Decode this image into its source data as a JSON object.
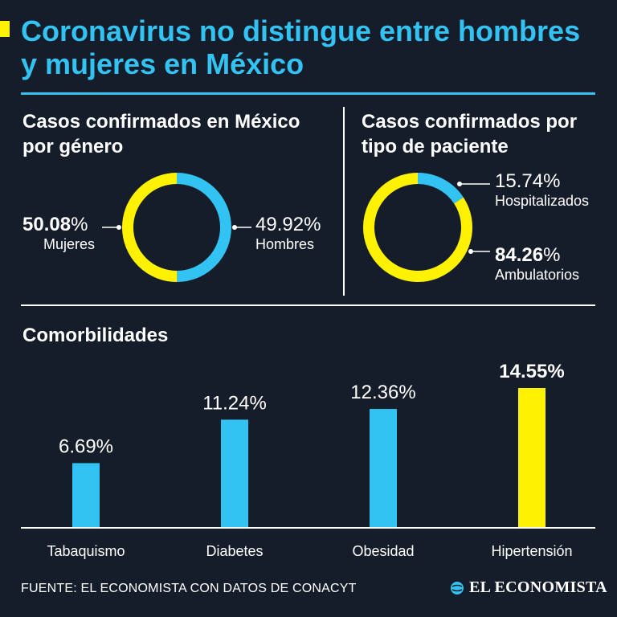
{
  "title": "Coronavirus no distingue entre hombres y mujeres en México",
  "colors": {
    "background": "#161d2a",
    "accent": "#33c3f3",
    "highlight": "#fff200",
    "text": "#ffffff"
  },
  "gender_section": {
    "title": "Casos confirmados en México por género"
  },
  "patient_section": {
    "title": "Casos confirmados por tipo de paciente"
  },
  "comorbidities_section": {
    "title": "Comorbilidades"
  },
  "footer": {
    "source": "FUENTE: EL ECONOMISTA CON DATOS DE CONACYT",
    "brand": "EL ECONOMISTA"
  },
  "brand_icon": "globe-icon",
  "chart_data": [
    {
      "type": "pie",
      "title": "Casos confirmados en México por género",
      "unit": "%",
      "slices": [
        {
          "label": "Mujeres",
          "value": 50.08,
          "display": "50.08",
          "color": "#fff200"
        },
        {
          "label": "Hombres",
          "value": 49.92,
          "display": "49.92",
          "color": "#33c3f3"
        }
      ]
    },
    {
      "type": "pie",
      "title": "Casos confirmados por tipo de paciente",
      "unit": "%",
      "slices": [
        {
          "label": "Hospitalizados",
          "value": 15.74,
          "display": "15.74",
          "color": "#33c3f3"
        },
        {
          "label": "Ambulatorios",
          "value": 84.26,
          "display": "84.26",
          "color": "#fff200"
        }
      ]
    },
    {
      "type": "bar",
      "title": "Comorbilidades",
      "unit": "%",
      "categories": [
        "Tabaquismo",
        "Diabetes",
        "Obesidad",
        "Hipertensión"
      ],
      "values": [
        6.69,
        11.24,
        12.36,
        14.55
      ],
      "labels": [
        "6.69",
        "11.24",
        "12.36",
        "14.55"
      ],
      "colors": [
        "#33c3f3",
        "#33c3f3",
        "#33c3f3",
        "#fff200"
      ],
      "highlight_index": 3,
      "ylim": [
        0,
        14.55
      ]
    }
  ]
}
